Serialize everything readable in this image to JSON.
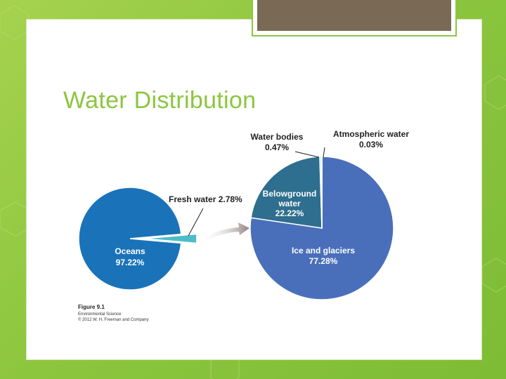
{
  "slide": {
    "title": "Water Distribution"
  },
  "colors": {
    "background": "#8cc63f",
    "title": "#8cc63f",
    "oceans": "#1a73b9",
    "fresh_water": "#4dbcc8",
    "ice_and_glaciers": "#4a6fba",
    "belowground_water": "#2e6e8e",
    "water_bodies": "#cfe6ee",
    "atmospheric_water": "#b2185a"
  },
  "chart_data": [
    {
      "type": "pie",
      "labels": [
        "Oceans",
        "Fresh water"
      ],
      "values": [
        97.22,
        2.78
      ],
      "value_labels": [
        "97.22%",
        "2.78%"
      ],
      "title": ""
    },
    {
      "type": "pie",
      "labels": [
        "Ice and glaciers",
        "Belowground water",
        "Water bodies",
        "Atmospheric water"
      ],
      "values": [
        77.28,
        22.22,
        0.47,
        0.03
      ],
      "value_labels": [
        "77.28%",
        "22.22%",
        "0.47%",
        "0.03%"
      ],
      "title": ""
    }
  ],
  "labels": {
    "oceans_name": "Oceans",
    "oceans_value": "97.22%",
    "fresh_water": "Fresh water 2.78%",
    "water_bodies_name": "Water bodies",
    "water_bodies_value": "0.47%",
    "atmospheric_name": "Atmospheric water",
    "atmospheric_value": "0.03%",
    "belowground_line1": "Belowground",
    "belowground_line2": "water",
    "belowground_value": "22.22%",
    "ice_name": "Ice and glaciers",
    "ice_value": "77.28%"
  },
  "caption": {
    "figure": "Figure 9.1",
    "book": "Environmental Science",
    "copyright": "© 2012 W. H. Freeman and Company"
  }
}
